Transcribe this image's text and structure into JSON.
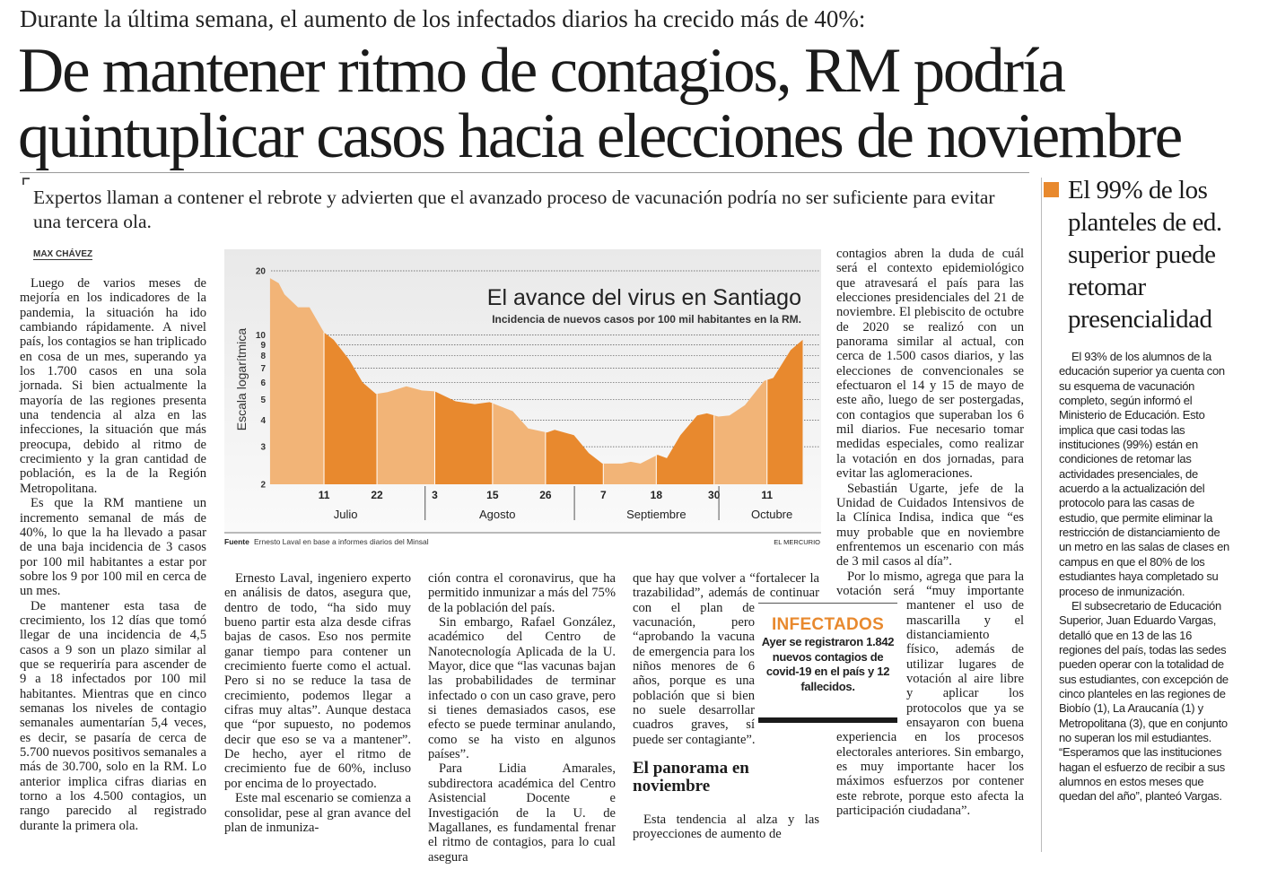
{
  "header": {
    "kicker": "Durante la última semana, el aumento de los infectados diarios ha crecido más de 40%:",
    "headline_lines": [
      "De mantener ritmo de contagios, RM podría",
      "quintuplicar casos hacia elecciones de noviembre"
    ],
    "deck": "Expertos llaman a contener el rebrote y advierten que el avanzado proceso de vacunación podría no ser suficiente para evitar una tercera ola.",
    "byline": "MAX CHÁVEZ"
  },
  "columns": {
    "c1": [
      "Luego de varios meses de mejoría en los indicadores de la pandemia, la situación ha ido cambiando rápidamente. A nivel país, los contagios se han triplicado en cosa de un mes, superando ya los 1.700 casos en una sola jornada. Si bien actualmente la mayoría de las regiones presenta una tendencia al alza en las infecciones, la situación que más preocupa, debido al ritmo de crecimiento y la gran cantidad de población, es la de la Región Metropolitana.",
      "Es que la RM mantiene un incremento semanal de más de 40%, lo que la ha llevado a pasar de una baja incidencia de 3 casos por 100 mil habitantes a estar por sobre los 9 por 100 mil en cerca de un mes.",
      "De mantener esta tasa de crecimiento, los 12 días que tomó llegar de una incidencia de 4,5 casos a 9 son un plazo similar al que se requeriría para ascender de 9 a 18 infectados por 100 mil habitantes. Mientras que en cinco semanas los niveles de contagio semanales aumentarían 5,4 veces, es decir, se pasaría de cerca de 5.700 nuevos positivos semanales a más de 30.700, solo en la RM. Lo anterior implica cifras diarias en torno a los 4.500 contagios, un rango parecido al registrado durante la primera ola."
    ],
    "c2": [
      "Ernesto Laval, ingeniero experto en análisis de datos, asegura que, dentro de todo, “ha sido muy bueno partir esta alza desde cifras bajas de casos. Eso nos permite ganar tiempo para contener un crecimiento fuerte como el actual. Pero si no se reduce la tasa de crecimiento, podemos llegar a cifras muy altas”. Aunque destaca que “por supuesto, no podemos decir que eso se va a mantener”. De hecho, ayer el ritmo de crecimiento fue de 60%, incluso por encima de lo proyectado.",
      "Este mal escenario se comienza a consolidar, pese al gran avance del plan de inmuniza-"
    ],
    "c3": [
      "ción contra el coronavirus, que ha permitido inmunizar a más del 75% de la población del país.",
      "Sin embargo, Rafael González, académico del Centro de Nanotecnología Aplicada de la U. Mayor, dice que “las vacunas bajan las probabilidades de terminar infectado o con un caso grave, pero si tienes demasiados casos, ese efecto se puede terminar anulando, como se ha visto en algunos países”.",
      "Para Lidia Amarales, subdirectora académica del Centro Asistencial Docente e Investigación de la U. de Magallanes, es fundamental frenar el ritmo de contagios, para lo cual asegura"
    ],
    "c4": {
      "p1": "que hay que volver a “fortalecer la trazabilidad”, además de continuar con el plan de vacunación, pero “aprobando la vacuna de emergencia para los niños menores de 6 años, porque es una población que si bien no suele desarrollar cuadros graves, sí puede ser contagiante”.",
      "subhead": "El panorama en noviembre",
      "p2": "Esta tendencia al alza y las proyecciones de aumento de"
    },
    "c5": [
      "contagios abren la duda de cuál será el contexto epidemiológico que atravesará el país para las elecciones presidenciales del 21 de noviembre. El plebiscito de octubre de 2020 se realizó con un panorama similar al actual, con cerca de 1.500 casos diarios, y las elecciones de convencionales se efectuaron el 14 y 15 de mayo de este año, luego de ser postergadas, con contagios que superaban los 6 mil diarios. Fue necesario tomar medidas especiales, como realizar la votación en dos jornadas, para evitar las aglomeraciones.",
      "Sebastián Ugarte, jefe de la Unidad de Cuidados Intensivos de la Clínica Indisa, indica que “es muy probable que en noviembre enfrentemos un escenario con más de 3 mil casos al día”.",
      "Por lo mismo, agrega que para la votación será “muy importante mantener el uso de mascarilla y el distanciamiento físico, además de utilizar lugares de votación al aire libre y aplicar los protocolos que ya se ensayaron con buena experiencia en los procesos electorales anteriores. Sin embargo, es muy importante hacer los máximos esfuerzos por contener este rebrote, porque esto afecta la participación ciudadana”."
    ]
  },
  "infobox": {
    "title": "INFECTADOS",
    "body": "Ayer se registraron 1.842 nuevos contagios de covid-19 en el país y 12 fallecidos."
  },
  "sidebar": {
    "headline": "El 99% de los planteles de ed. superior puede retomar presencialidad",
    "paragraphs": [
      "El 93% de los alumnos de la educación superior ya cuenta con su esquema de vacunación completo, según informó el Ministerio de Educación. Esto implica que casi todas las instituciones (99%) están en condiciones de retomar las actividades presenciales, de acuerdo a la actualización del protocolo para las casas de estudio, que permite eliminar la restricción de distanciamiento de un metro en las salas de clases en campus en que el 80% de los estudiantes haya completado su proceso de inmunización.",
      "El subsecretario de Educación Superior, Juan Eduardo Vargas, detalló que en 13 de las 16 regiones del país, todas las sedes pueden operar con la totalidad de sus estudiantes, con excepción de cinco planteles en las regiones de Biobío (1), La Araucanía (1) y Metropolitana (3), que en conjunto no superan los mil estudiantes. “Esperamos que las instituciones hagan el esfuerzo de recibir a sus alumnos en estos meses que quedan del año”, planteó Vargas."
    ]
  },
  "colors": {
    "accent": "#e8892e",
    "band_light": "#f2b477",
    "band_dark": "#e8892e"
  },
  "chart_data": {
    "type": "area",
    "title": "El avance del virus en Santiago",
    "subtitle": "Incidencia de nuevos casos por 100 mil habitantes en la RM.",
    "ylabel": "Escala logarítmica",
    "yscale": "log",
    "ylim": [
      2,
      20
    ],
    "yticks": [
      20,
      10,
      9,
      8,
      7,
      6,
      5,
      4,
      3,
      2
    ],
    "x_unit": "days since 1 July",
    "xlim": [
      -1,
      109.5
    ],
    "xticks": [
      {
        "day": 10,
        "label": "11"
      },
      {
        "day": 21,
        "label": "22"
      },
      {
        "day": 33,
        "label": "3"
      },
      {
        "day": 45,
        "label": "15"
      },
      {
        "day": 56,
        "label": "26"
      },
      {
        "day": 68,
        "label": "7"
      },
      {
        "day": 79,
        "label": "18"
      },
      {
        "day": 91,
        "label": "30"
      },
      {
        "day": 102,
        "label": "11"
      }
    ],
    "months": [
      {
        "label": "Julio",
        "center": 14.5
      },
      {
        "label": "Agosto",
        "center": 46
      },
      {
        "label": "Septiembre",
        "center": 79
      },
      {
        "label": "Octubre",
        "center": 103
      }
    ],
    "month_separators": [
      31,
      62,
      92
    ],
    "series": [
      {
        "name": "Incidencia",
        "x": [
          -1.2,
          0.6,
          1.8,
          4.6,
          7,
          10,
          12,
          15.2,
          18,
          20.8,
          23.2,
          27.1,
          30.3,
          33,
          37.3,
          41.3,
          44.4,
          49.2,
          52.4,
          56.3,
          57.9,
          61.9,
          65,
          67.8,
          71.8,
          73.7,
          75.7,
          79.3,
          81.2,
          84,
          87.5,
          89.5,
          91.9,
          94.2,
          97.4,
          101.4,
          103.3,
          106.9,
          109.4
        ],
        "y": [
          18.5,
          17.5,
          15.5,
          13.5,
          13.5,
          10.3,
          9.5,
          7.7,
          6,
          5.3,
          5.4,
          5.75,
          5.5,
          5.45,
          4.9,
          4.75,
          4.85,
          4.4,
          3.65,
          3.5,
          3.6,
          3.4,
          2.8,
          2.5,
          2.5,
          2.55,
          2.5,
          2.75,
          2.65,
          3.4,
          4.2,
          4.3,
          4.15,
          4.2,
          4.7,
          6.1,
          6.3,
          8.5,
          9.5
        ]
      }
    ],
    "source_label": "Fuente",
    "source": "Ernesto Laval en base a informes diarios del Minsal",
    "credit": "EL MERCURIO"
  }
}
